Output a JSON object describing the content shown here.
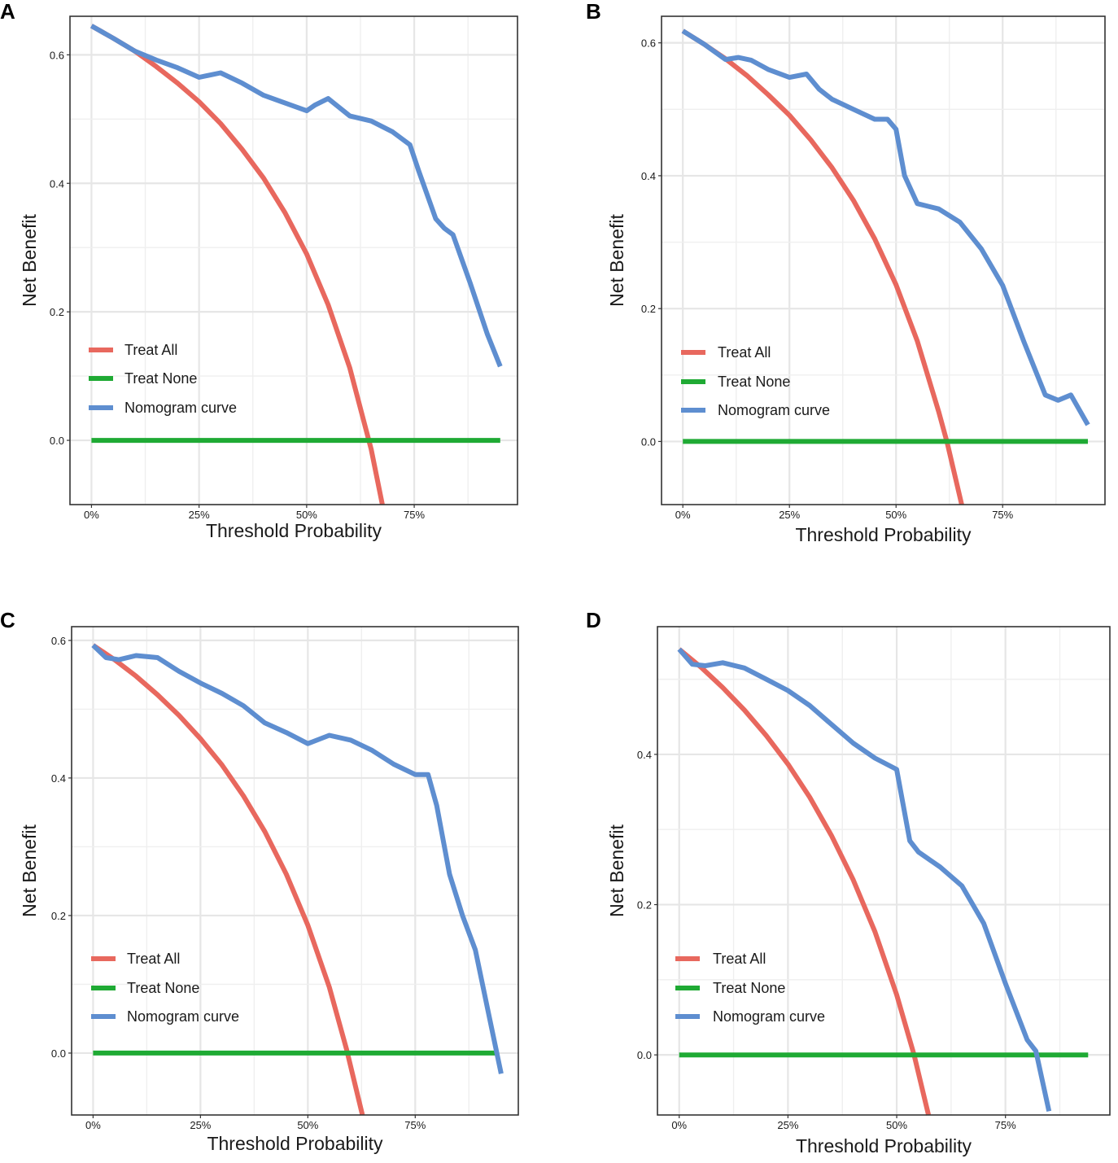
{
  "figure": {
    "background": "#ffffff"
  },
  "colors": {
    "treat_all": "#e8685e",
    "treat_none": "#1faa34",
    "nomogram": "#5e8ed0"
  },
  "chart_data": [
    {
      "panel": "A",
      "type": "line",
      "xlabel": "Threshold Probability",
      "ylabel": "Net Benefit",
      "xlim": [
        -0.05,
        0.99
      ],
      "ylim": [
        -0.1,
        0.66
      ],
      "xticks": [
        0,
        0.25,
        0.5,
        0.75
      ],
      "xtick_labels": [
        "0%",
        "25%",
        "50%",
        "75%"
      ],
      "yticks": [
        0,
        0.2,
        0.4,
        0.6
      ],
      "ytick_labels": [
        "0.0",
        "0.2",
        "0.4",
        "0.6"
      ],
      "legend": {
        "position": "left-center",
        "entries": [
          "Treat All",
          "Treat None",
          "Nomogram curve"
        ]
      },
      "prevalence": 0.645,
      "series": [
        {
          "name": "Treat All",
          "color": "#e8685e",
          "x": [
            0,
            0.05,
            0.1,
            0.15,
            0.2,
            0.25,
            0.3,
            0.35,
            0.4,
            0.45,
            0.5,
            0.55,
            0.6,
            0.65,
            0.676
          ],
          "y": [
            0.645,
            0.626,
            0.606,
            0.582,
            0.556,
            0.527,
            0.493,
            0.453,
            0.408,
            0.354,
            0.29,
            0.211,
            0.113,
            -0.014,
            -0.1
          ]
        },
        {
          "name": "Treat None",
          "color": "#1faa34",
          "x": [
            0,
            0.95
          ],
          "y": [
            0,
            0
          ]
        },
        {
          "name": "Nomogram curve",
          "color": "#5e8ed0",
          "x": [
            0,
            0.05,
            0.1,
            0.15,
            0.2,
            0.25,
            0.3,
            0.35,
            0.4,
            0.45,
            0.5,
            0.52,
            0.55,
            0.6,
            0.65,
            0.7,
            0.74,
            0.76,
            0.8,
            0.82,
            0.84,
            0.88,
            0.92,
            0.95
          ],
          "y": [
            0.645,
            0.626,
            0.606,
            0.592,
            0.58,
            0.565,
            0.572,
            0.556,
            0.537,
            0.525,
            0.513,
            0.522,
            0.532,
            0.505,
            0.497,
            0.48,
            0.46,
            0.42,
            0.345,
            0.33,
            0.32,
            0.245,
            0.165,
            0.115
          ]
        }
      ]
    },
    {
      "panel": "B",
      "type": "line",
      "xlabel": "Threshold Probability",
      "ylabel": "Net Benefit",
      "xlim": [
        -0.05,
        0.99
      ],
      "ylim": [
        -0.095,
        0.64
      ],
      "xticks": [
        0,
        0.25,
        0.5,
        0.75
      ],
      "xtick_labels": [
        "0%",
        "25%",
        "50%",
        "75%"
      ],
      "yticks": [
        0,
        0.2,
        0.4,
        0.6
      ],
      "ytick_labels": [
        "0.0",
        "0.2",
        "0.4",
        "0.6"
      ],
      "legend": {
        "position": "left-center",
        "entries": [
          "Treat All",
          "Treat None",
          "Nomogram curve"
        ]
      },
      "prevalence": 0.618,
      "series": [
        {
          "name": "Treat All",
          "color": "#e8685e",
          "x": [
            0,
            0.05,
            0.1,
            0.15,
            0.2,
            0.25,
            0.3,
            0.35,
            0.4,
            0.45,
            0.5,
            0.55,
            0.6,
            0.62,
            0.654
          ],
          "y": [
            0.618,
            0.598,
            0.576,
            0.551,
            0.522,
            0.491,
            0.454,
            0.412,
            0.363,
            0.305,
            0.236,
            0.151,
            0.045,
            -0.002,
            -0.095
          ]
        },
        {
          "name": "Treat None",
          "color": "#1faa34",
          "x": [
            0,
            0.95
          ],
          "y": [
            0,
            0
          ]
        },
        {
          "name": "Nomogram curve",
          "color": "#5e8ed0",
          "x": [
            0,
            0.05,
            0.1,
            0.13,
            0.16,
            0.2,
            0.25,
            0.29,
            0.32,
            0.35,
            0.4,
            0.45,
            0.48,
            0.5,
            0.52,
            0.55,
            0.6,
            0.65,
            0.7,
            0.75,
            0.8,
            0.85,
            0.88,
            0.91,
            0.95
          ],
          "y": [
            0.618,
            0.598,
            0.575,
            0.578,
            0.574,
            0.56,
            0.548,
            0.553,
            0.53,
            0.515,
            0.5,
            0.485,
            0.485,
            0.47,
            0.4,
            0.358,
            0.35,
            0.33,
            0.29,
            0.235,
            0.15,
            0.07,
            0.062,
            0.07,
            0.025
          ]
        }
      ]
    },
    {
      "panel": "C",
      "type": "line",
      "xlabel": "Threshold Probability",
      "ylabel": "Net Benefit",
      "xlim": [
        -0.05,
        0.99
      ],
      "ylim": [
        -0.09,
        0.62
      ],
      "xticks": [
        0,
        0.25,
        0.5,
        0.75
      ],
      "xtick_labels": [
        "0%",
        "25%",
        "50%",
        "75%"
      ],
      "yticks": [
        0,
        0.2,
        0.4,
        0.6
      ],
      "ytick_labels": [
        "0.0",
        "0.2",
        "0.4",
        "0.6"
      ],
      "legend": {
        "position": "left-center",
        "entries": [
          "Treat All",
          "Treat None",
          "Nomogram curve"
        ]
      },
      "prevalence": 0.593,
      "series": [
        {
          "name": "Treat All",
          "color": "#e8685e",
          "x": [
            0,
            0.05,
            0.1,
            0.15,
            0.2,
            0.25,
            0.3,
            0.35,
            0.4,
            0.45,
            0.5,
            0.55,
            0.59,
            0.627
          ],
          "y": [
            0.593,
            0.572,
            0.548,
            0.521,
            0.491,
            0.457,
            0.419,
            0.374,
            0.322,
            0.26,
            0.186,
            0.096,
            0.006,
            -0.09
          ]
        },
        {
          "name": "Treat None",
          "color": "#1faa34",
          "x": [
            0,
            0.94
          ],
          "y": [
            0,
            0
          ]
        },
        {
          "name": "Nomogram curve",
          "color": "#5e8ed0",
          "x": [
            0,
            0.03,
            0.06,
            0.1,
            0.15,
            0.2,
            0.25,
            0.3,
            0.35,
            0.4,
            0.45,
            0.5,
            0.55,
            0.6,
            0.65,
            0.7,
            0.75,
            0.78,
            0.8,
            0.83,
            0.86,
            0.89,
            0.92,
            0.95
          ],
          "y": [
            0.593,
            0.575,
            0.572,
            0.578,
            0.575,
            0.555,
            0.538,
            0.523,
            0.505,
            0.48,
            0.466,
            0.45,
            0.462,
            0.455,
            0.44,
            0.42,
            0.405,
            0.405,
            0.36,
            0.26,
            0.2,
            0.15,
            0.06,
            -0.03
          ]
        }
      ]
    },
    {
      "panel": "D",
      "type": "line",
      "xlabel": "Threshold Probability",
      "ylabel": "Net Benefit",
      "xlim": [
        -0.05,
        0.99
      ],
      "ylim": [
        -0.08,
        0.57
      ],
      "xticks": [
        0,
        0.25,
        0.5,
        0.75
      ],
      "xtick_labels": [
        "0%",
        "25%",
        "50%",
        "75%"
      ],
      "yticks": [
        0,
        0.2,
        0.4
      ],
      "ytick_labels": [
        "0.0",
        "0.2",
        "0.4"
      ],
      "legend": {
        "position": "left-center",
        "entries": [
          "Treat All",
          "Treat None",
          "Nomogram curve"
        ]
      },
      "prevalence": 0.54,
      "series": [
        {
          "name": "Treat All",
          "color": "#e8685e",
          "x": [
            0,
            0.05,
            0.1,
            0.15,
            0.2,
            0.25,
            0.3,
            0.35,
            0.4,
            0.45,
            0.5,
            0.54,
            0.573
          ],
          "y": [
            0.54,
            0.516,
            0.489,
            0.459,
            0.425,
            0.387,
            0.343,
            0.292,
            0.233,
            0.164,
            0.08,
            0.0,
            -0.08
          ]
        },
        {
          "name": "Treat None",
          "color": "#1faa34",
          "x": [
            0,
            0.94
          ],
          "y": [
            0,
            0
          ]
        },
        {
          "name": "Nomogram curve",
          "color": "#5e8ed0",
          "x": [
            0,
            0.03,
            0.06,
            0.1,
            0.15,
            0.2,
            0.25,
            0.3,
            0.35,
            0.4,
            0.45,
            0.5,
            0.53,
            0.55,
            0.6,
            0.65,
            0.7,
            0.75,
            0.8,
            0.82,
            0.85
          ],
          "y": [
            0.54,
            0.52,
            0.518,
            0.522,
            0.515,
            0.5,
            0.485,
            0.465,
            0.44,
            0.415,
            0.395,
            0.38,
            0.285,
            0.27,
            0.25,
            0.225,
            0.175,
            0.095,
            0.02,
            0.005,
            -0.075
          ]
        }
      ]
    }
  ]
}
